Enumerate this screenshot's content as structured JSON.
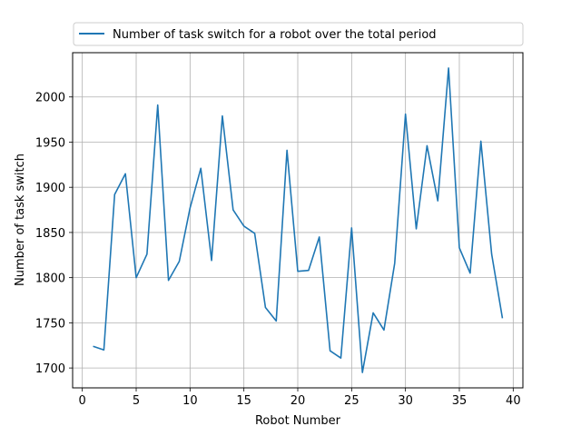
{
  "chart_data": {
    "type": "line",
    "title": "",
    "xlabel": "Robot Number",
    "ylabel": "Number of task switch",
    "xlim": [
      -0.9,
      40.9
    ],
    "ylim": [
      1678,
      2049
    ],
    "xticks": [
      0,
      5,
      10,
      15,
      20,
      25,
      30,
      35,
      40
    ],
    "yticks": [
      1700,
      1750,
      1800,
      1850,
      1900,
      1950,
      2000
    ],
    "grid": true,
    "legend_position": "top",
    "colors": {
      "series": "#1f77b4",
      "grid": "#b0b0b0"
    },
    "series": [
      {
        "name": "Number of task switch for a robot over the total period",
        "x": [
          1,
          2,
          3,
          4,
          5,
          6,
          7,
          8,
          9,
          10,
          11,
          12,
          13,
          14,
          15,
          16,
          17,
          18,
          19,
          20,
          21,
          22,
          23,
          24,
          25,
          26,
          27,
          28,
          29,
          30,
          31,
          32,
          33,
          34,
          35,
          36,
          37,
          38,
          39
        ],
        "y": [
          1724,
          1720,
          1892,
          1915,
          1800,
          1826,
          1991,
          1797,
          1818,
          1877,
          1921,
          1819,
          1979,
          1875,
          1857,
          1849,
          1767,
          1752,
          1941,
          1807,
          1808,
          1845,
          1719,
          1711,
          1855,
          1695,
          1761,
          1742,
          1816,
          1981,
          1854,
          1946,
          1885,
          2032,
          1833,
          1805,
          1951,
          1826,
          1755
        ]
      }
    ]
  }
}
